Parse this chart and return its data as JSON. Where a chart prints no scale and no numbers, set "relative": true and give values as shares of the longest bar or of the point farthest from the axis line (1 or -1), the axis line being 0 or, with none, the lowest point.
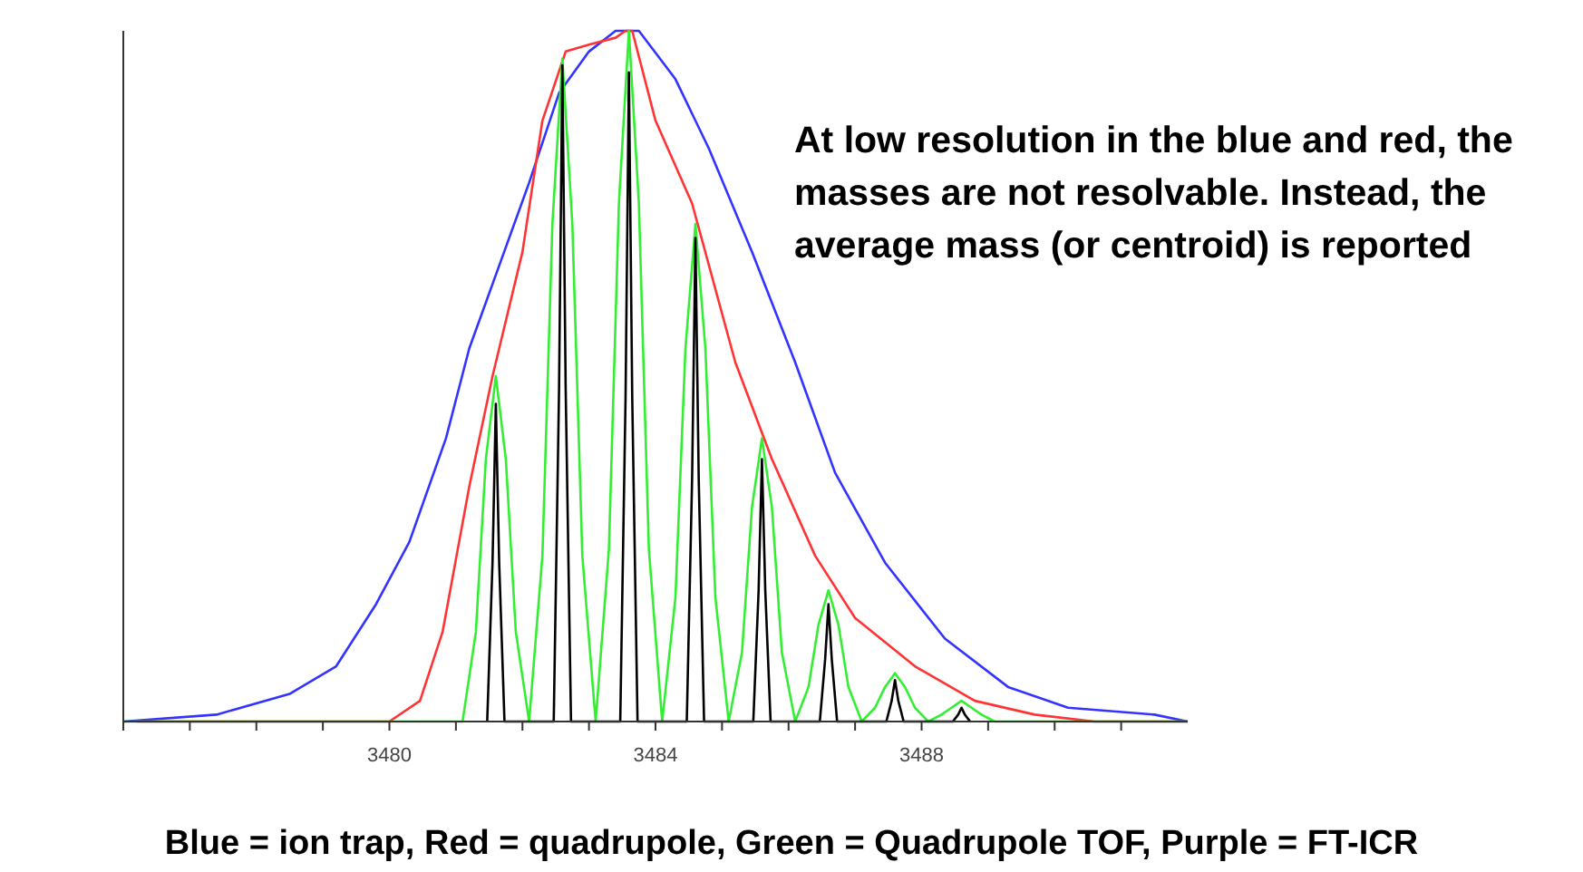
{
  "chart_data": {
    "type": "line",
    "relative": true,
    "xlim": [
      3476,
      3492
    ],
    "xticks": [
      {
        "value": 3476,
        "label": null
      },
      {
        "value": 3477,
        "label": null
      },
      {
        "value": 3478,
        "label": null
      },
      {
        "value": 3479,
        "label": null
      },
      3480,
      {
        "value": 3481,
        "label": null
      },
      {
        "value": 3482,
        "label": null
      },
      {
        "value": 3483,
        "label": null
      },
      3484,
      {
        "value": 3485,
        "label": null
      },
      {
        "value": 3486,
        "label": null
      },
      {
        "value": 3487,
        "label": null
      },
      3488,
      {
        "value": 3489,
        "label": null
      },
      {
        "value": 3490,
        "label": null
      },
      {
        "value": 3491,
        "label": null
      }
    ],
    "tick_labels": "x",
    "grid": false,
    "marker": "none",
    "line_style": "solid",
    "series": [
      {
        "color": "#3333ff",
        "x": [
          3476,
          3477.4,
          3478.5,
          3479.2,
          3479.8,
          3480.3,
          3480.85,
          3481.2,
          3481.65,
          3482.1,
          3482.55,
          3483.0,
          3483.4,
          3483.75,
          3484.3,
          3484.8,
          3485.45,
          3486.1,
          3486.7,
          3487.45,
          3488.35,
          3489.3,
          3490.2,
          3491.5,
          3492
        ],
        "values": [
          0,
          0.01,
          0.04,
          0.08,
          0.17,
          0.26,
          0.41,
          0.54,
          0.66,
          0.78,
          0.91,
          0.97,
          1.0,
          1.0,
          0.93,
          0.83,
          0.68,
          0.52,
          0.36,
          0.23,
          0.12,
          0.05,
          0.02,
          0.01,
          0
        ]
      },
      {
        "color": "#ff3333",
        "x": [
          3476.2,
          3480.0,
          3480.46,
          3480.8,
          3481.2,
          3481.55,
          3482.0,
          3482.3,
          3482.65,
          3483.0,
          3483.4,
          3483.55,
          3483.65,
          3484.0,
          3484.55,
          3485.2,
          3485.75,
          3486.4,
          3487.0,
          3487.9,
          3488.8,
          3489.7,
          3490.6,
          3492
        ],
        "values": [
          0,
          0,
          0.03,
          0.13,
          0.34,
          0.5,
          0.68,
          0.87,
          0.97,
          0.98,
          0.99,
          1.0,
          1.0,
          0.87,
          0.75,
          0.52,
          0.38,
          0.24,
          0.15,
          0.08,
          0.03,
          0.01,
          0,
          0
        ]
      },
      {
        "color": "#33ee33",
        "x": [
          3476,
          3481.1,
          3481.3,
          3481.45,
          3481.6,
          3481.75,
          3481.9,
          3482.1,
          3482.3,
          3482.45,
          3482.6,
          3482.75,
          3482.9,
          3483.1,
          3483.3,
          3483.45,
          3483.6,
          3483.75,
          3483.9,
          3484.1,
          3484.3,
          3484.45,
          3484.6,
          3484.75,
          3484.9,
          3485.1,
          3485.3,
          3485.45,
          3485.6,
          3485.75,
          3485.9,
          3486.1,
          3486.3,
          3486.45,
          3486.6,
          3486.75,
          3486.9,
          3487.1,
          3487.3,
          3487.45,
          3487.6,
          3487.75,
          3487.9,
          3488.1,
          3488.3,
          3488.45,
          3488.6,
          3488.75,
          3488.9,
          3489.1,
          3492
        ],
        "values": [
          0,
          0,
          0.13,
          0.38,
          0.5,
          0.38,
          0.13,
          0,
          0.24,
          0.72,
          0.96,
          0.72,
          0.24,
          0,
          0.25,
          0.75,
          1.0,
          0.75,
          0.25,
          0,
          0.18,
          0.54,
          0.72,
          0.54,
          0.18,
          0,
          0.1,
          0.31,
          0.41,
          0.31,
          0.1,
          0,
          0.05,
          0.14,
          0.19,
          0.14,
          0.05,
          0,
          0.02,
          0.05,
          0.07,
          0.05,
          0.02,
          0,
          0.01,
          0.02,
          0.03,
          0.02,
          0.01,
          0,
          0
        ]
      },
      {
        "color": "#000000",
        "x": [
          3481.47,
          3481.55,
          3481.6,
          3481.65,
          3481.73,
          3482.47,
          3482.55,
          3482.6,
          3482.65,
          3482.73,
          3483.47,
          3483.55,
          3483.6,
          3483.65,
          3483.73,
          3484.47,
          3484.55,
          3484.6,
          3484.65,
          3484.73,
          3485.47,
          3485.55,
          3485.6,
          3485.65,
          3485.73,
          3486.47,
          3486.55,
          3486.6,
          3486.65,
          3486.73,
          3487.47,
          3487.55,
          3487.6,
          3487.65,
          3487.73,
          3488.47,
          3488.55,
          3488.6,
          3488.65,
          3488.73
        ],
        "values": [
          0,
          0.23,
          0.46,
          0.23,
          0,
          0,
          0.48,
          0.95,
          0.48,
          0,
          0,
          0.47,
          0.94,
          0.47,
          0,
          0,
          0.35,
          0.7,
          0.35,
          0,
          0,
          0.19,
          0.38,
          0.19,
          0,
          0,
          0.09,
          0.17,
          0.09,
          0,
          0,
          0.03,
          0.06,
          0.03,
          0,
          0,
          0.01,
          0.02,
          0.01,
          0
        ]
      }
    ],
    "annotations": [
      "At low resolution in the blue and red, the masses are not resolvable. Instead, the average mass (or centroid) is reported",
      "Blue = ion trap, Red = quadrupole, Green = Quadrupole TOF, Purple = FT-ICR"
    ]
  }
}
